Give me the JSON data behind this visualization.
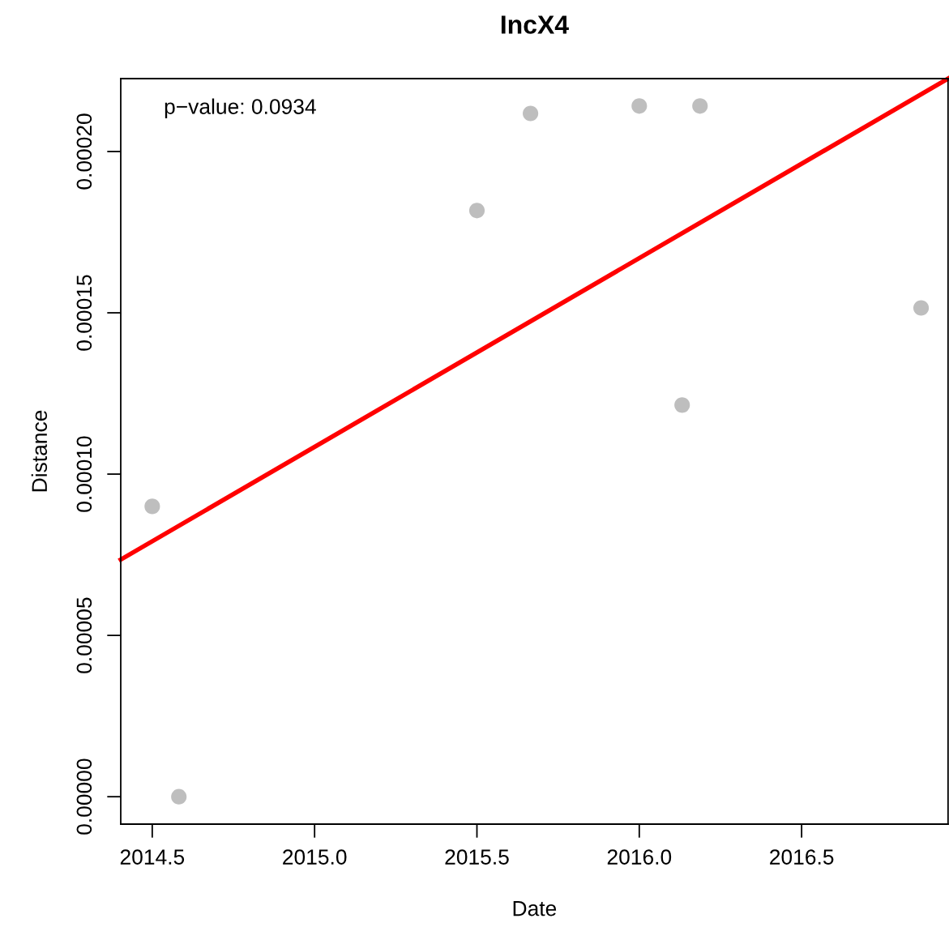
{
  "chart_data": {
    "type": "scatter",
    "title": "IncX4",
    "xlabel": "Date",
    "ylabel": "Distance",
    "annotations": [
      "p−value: 0.0934"
    ],
    "series": [
      {
        "marker": "circle",
        "color": "#bebebe",
        "x": [
          2014.5,
          2014.582,
          2015.5,
          2015.665,
          2016.0,
          2016.187,
          2016.132,
          2016.868
        ],
        "values": [
          9e-05,
          0.0,
          0.0001817,
          0.0002118,
          0.0002141,
          0.0002141,
          0.0001214,
          0.0001515
        ]
      },
      {
        "type": "line",
        "color": "#ff0000",
        "x": [
          2014.403,
          2016.951
        ],
        "values": [
          7.35e-05,
          0.0002226
        ]
      }
    ],
    "xlim": [
      2014.403,
      2016.951
    ],
    "ylim": [
      -8.5e-06,
      0.0002226
    ],
    "xticks": [
      {
        "value": 2014.5,
        "label": "2014.5"
      },
      {
        "value": 2015.0,
        "label": "2015.0"
      },
      {
        "value": 2015.5,
        "label": "2015.5"
      },
      {
        "value": 2016.0,
        "label": "2016.0"
      },
      {
        "value": 2016.5,
        "label": "2016.5"
      }
    ],
    "yticks": [
      {
        "value": 0,
        "label": "0.00000"
      },
      {
        "value": 5e-05,
        "label": "0.00005"
      },
      {
        "value": 0.0001,
        "label": "0.00010"
      },
      {
        "value": 0.00015,
        "label": "0.00015"
      },
      {
        "value": 0.0002,
        "label": "0.00020"
      }
    ],
    "grid": false,
    "legend": false,
    "line_style": "solid"
  }
}
